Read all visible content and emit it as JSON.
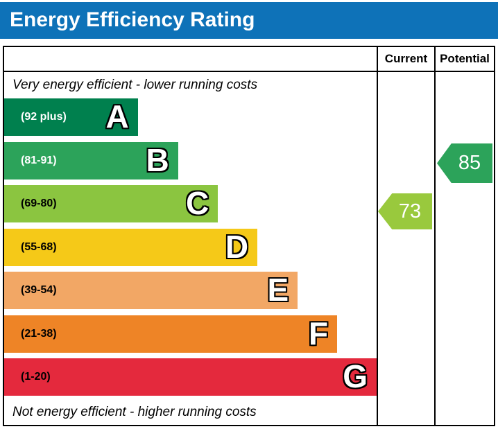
{
  "title": "Energy Efficiency Rating",
  "colors": {
    "header_bg": "#0e72b8",
    "border": "#000000"
  },
  "table": {
    "current_header": "Current",
    "potential_header": "Potential",
    "top_note": "Very energy efficient - lower running costs",
    "bottom_note": "Not energy efficient - higher running costs"
  },
  "chart_data": {
    "type": "bar",
    "title": "Energy Efficiency Rating",
    "categories": [
      "A",
      "B",
      "C",
      "D",
      "E",
      "F",
      "G"
    ],
    "bands": [
      {
        "letter": "A",
        "range": "(92 plus)",
        "color": "#00804e",
        "width_pct": 35.9,
        "label_color": "#ffffff"
      },
      {
        "letter": "B",
        "range": "(81-91)",
        "color": "#2ca35a",
        "width_pct": 46.7,
        "label_color": "#ffffff"
      },
      {
        "letter": "C",
        "range": "(69-80)",
        "color": "#8bc540",
        "width_pct": 57.4,
        "label_color": "#000000"
      },
      {
        "letter": "D",
        "range": "(55-68)",
        "color": "#f5c918",
        "width_pct": 68.0,
        "label_color": "#000000"
      },
      {
        "letter": "E",
        "range": "(39-54)",
        "color": "#f2a765",
        "width_pct": 78.8,
        "label_color": "#000000"
      },
      {
        "letter": "F",
        "range": "(21-38)",
        "color": "#ee8426",
        "width_pct": 89.4,
        "label_color": "#000000"
      },
      {
        "letter": "G",
        "range": "(1-20)",
        "color": "#e4293d",
        "width_pct": 100,
        "label_color": "#000000"
      }
    ],
    "current": {
      "value": 73,
      "band": "C",
      "color": "#99c93d"
    },
    "potential": {
      "value": 85,
      "band": "B",
      "color": "#2ca35a"
    }
  }
}
